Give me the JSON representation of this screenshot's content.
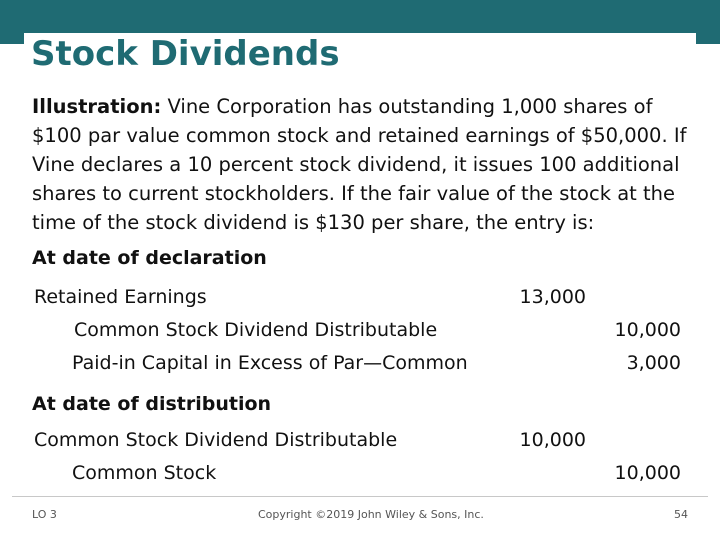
{
  "title": "Stock Dividends",
  "illustration": {
    "label": "Illustration:",
    "text": " Vine Corporation has outstanding 1,000 shares of $100 par value common stock and retained earnings of $50,000. If Vine declares a 10 percent stock dividend, it issues 100 additional shares to current stockholders. If the fair value of the stock at the time of the stock dividend is $130 per share, the entry is:"
  },
  "declaration": {
    "heading": "At date of declaration",
    "rows": [
      {
        "account": "Retained Earnings",
        "debit": "13,000",
        "credit": ""
      },
      {
        "account": "Common Stock Dividend Distributable",
        "debit": "",
        "credit": "10,000"
      },
      {
        "account": "Paid-in Capital in Excess of Par—Common",
        "debit": "",
        "credit": "3,000"
      }
    ]
  },
  "distribution": {
    "heading": "At date of distribution",
    "rows": [
      {
        "account": "Common Stock Dividend Distributable",
        "debit": "10,000",
        "credit": ""
      },
      {
        "account": "Common Stock",
        "debit": "",
        "credit": "10,000"
      }
    ]
  },
  "footer": {
    "lo": "LO 3",
    "copyright": "Copyright ©2019 John Wiley & Sons, Inc.",
    "page": "54"
  },
  "colors": {
    "accent": "#1f6b73"
  }
}
